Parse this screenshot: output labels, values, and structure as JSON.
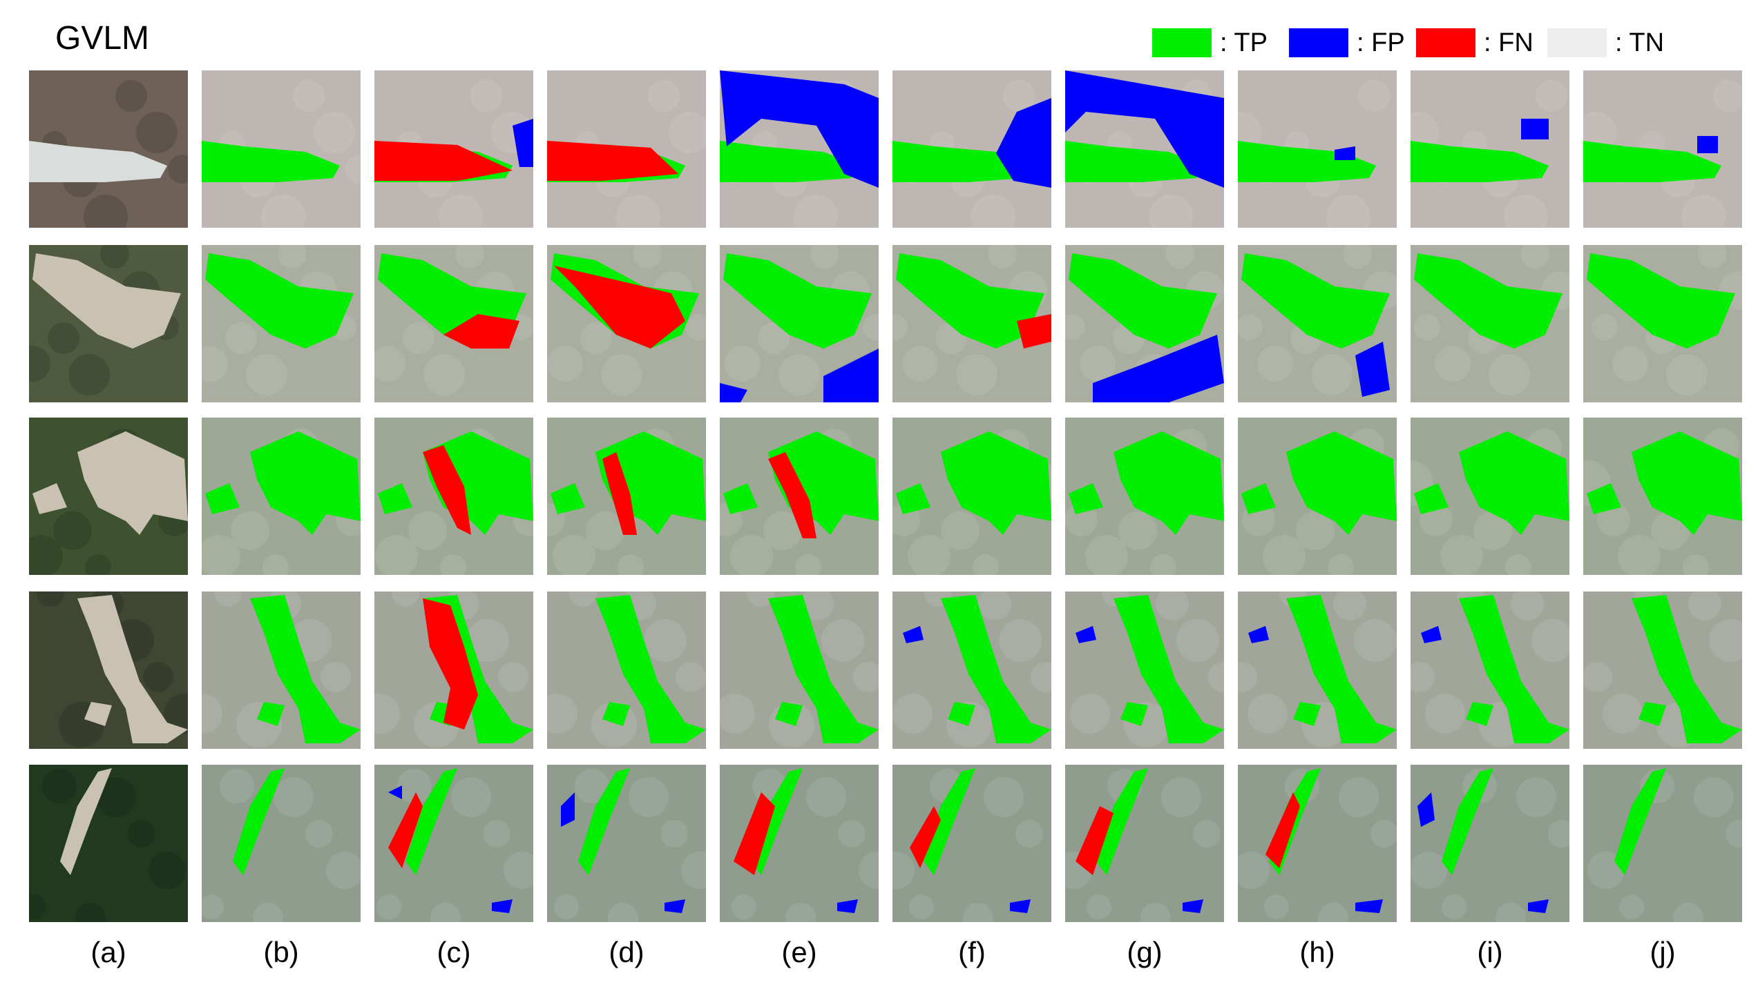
{
  "figure": {
    "dataset_title": "GVLM",
    "legend": [
      {
        "key": "tp",
        "label": ": TP",
        "color": "#00ee00"
      },
      {
        "key": "fp",
        "label": ": FP",
        "color": "#0000ff"
      },
      {
        "key": "fn",
        "label": ": FN",
        "color": "#ff0000"
      },
      {
        "key": "tn",
        "label": ": TN",
        "color": "#eeeeee"
      }
    ],
    "columns": [
      "(a)",
      "(b)",
      "(c)",
      "(d)",
      "(e)",
      "(f)",
      "(g)",
      "(h)",
      "(i)",
      "(j)"
    ],
    "rows": 5
  }
}
